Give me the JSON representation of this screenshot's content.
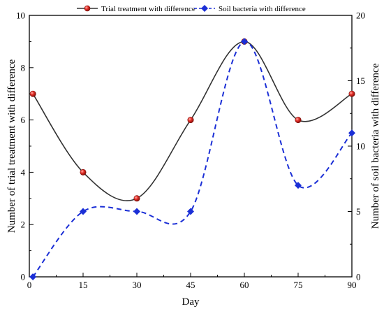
{
  "chart_data": {
    "type": "line",
    "xlabel": "Day",
    "ylabel": "Number of trial treatment with difference",
    "y2label": "Number of soil bacteria with difference",
    "xlim": [
      0,
      90
    ],
    "ylim": [
      0,
      10
    ],
    "y2lim": [
      0,
      20
    ],
    "xticks": [
      "0",
      "15",
      "30",
      "45",
      "60",
      "75",
      "90"
    ],
    "yticks": [
      "0",
      "2",
      "4",
      "6",
      "8",
      "10"
    ],
    "y2ticks": [
      "0",
      "5",
      "10",
      "15",
      "20"
    ],
    "legend_position": "top",
    "grid": false,
    "series": [
      {
        "name": "Trial treatment with difference",
        "axis": "left",
        "marker": "circle",
        "line_style": "solid",
        "color": "#333333",
        "marker_color": "#e8322b",
        "x": [
          1,
          15,
          30,
          45,
          60,
          75,
          90
        ],
        "y": [
          7,
          4,
          3,
          6,
          9,
          6,
          7
        ]
      },
      {
        "name": "Soil bacteria with difference",
        "axis": "right",
        "marker": "diamond",
        "line_style": "dashed",
        "color": "#1b2fd6",
        "marker_color": "#1b2fd6",
        "x": [
          1,
          15,
          30,
          45,
          60,
          75,
          90
        ],
        "y": [
          0,
          5,
          5,
          5,
          18,
          7,
          11
        ]
      }
    ]
  }
}
